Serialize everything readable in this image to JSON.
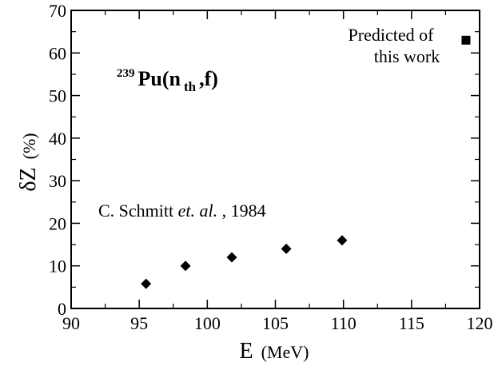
{
  "chart_data": {
    "type": "scatter",
    "x_axis": {
      "label_main": "E",
      "label_unit": "(MeV)",
      "range": [
        90,
        120
      ],
      "ticks": [
        90,
        95,
        100,
        105,
        110,
        115,
        120
      ],
      "tick_labels": [
        "90",
        "95",
        "100",
        "105",
        "110",
        "115",
        "120"
      ]
    },
    "y_axis": {
      "label_main": "δZ",
      "label_unit": "(%)",
      "range": [
        0,
        70
      ],
      "ticks": [
        0,
        10,
        20,
        30,
        40,
        50,
        60,
        70
      ],
      "tick_labels": [
        "0",
        "10",
        "20",
        "30",
        "40",
        "50",
        "60",
        "70"
      ]
    },
    "grid": false,
    "series": [
      {
        "marker": "diamond",
        "color": "#000000",
        "points": [
          {
            "x": 95.5,
            "y": 5.8
          },
          {
            "x": 98.4,
            "y": 10.0
          },
          {
            "x": 101.8,
            "y": 12.0
          },
          {
            "x": 105.8,
            "y": 14.0
          },
          {
            "x": 109.9,
            "y": 16.0
          }
        ]
      },
      {
        "marker": "square",
        "color": "#000000",
        "points": [
          {
            "x": 119.0,
            "y": 63.0
          }
        ]
      }
    ],
    "annotations": {
      "reaction": {
        "mass_number": "239",
        "element": "Pu(n",
        "subscript": "th",
        "suffix": ",f)"
      },
      "schmitt": {
        "author": "C. Schmitt ",
        "etal": "et. al.",
        "year": ", 1984"
      },
      "predicted_line1": "Predicted of",
      "predicted_line2": "this work"
    }
  }
}
